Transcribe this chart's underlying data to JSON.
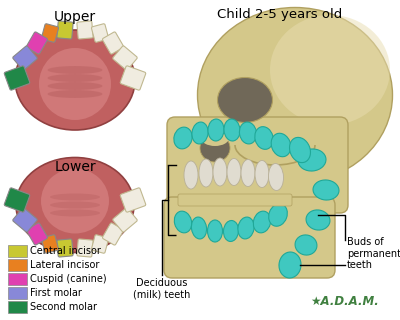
{
  "title": "Child 2-5 years old",
  "upper_label": "Upper",
  "lower_label": "Lower",
  "legend_items": [
    {
      "label": "Central incisor",
      "color": "#c8c832"
    },
    {
      "label": "Lateral incisor",
      "color": "#e88020"
    },
    {
      "label": "Cuspid (canine)",
      "color": "#e040b0"
    },
    {
      "label": "First molar",
      "color": "#8888d8"
    },
    {
      "label": "Second molar",
      "color": "#208848"
    }
  ],
  "adam_text": "★A.D.A.M.",
  "bg_color": "#ffffff",
  "fig_width": 4.0,
  "fig_height": 3.2,
  "dpi": 100,
  "skull_color": "#d4c88a",
  "skull_edge": "#b0a060",
  "cyan_color": "#40c8c0",
  "cyan_edge": "#20a898",
  "white_tooth": "#e0dcd0",
  "white_edge": "#b8b098"
}
